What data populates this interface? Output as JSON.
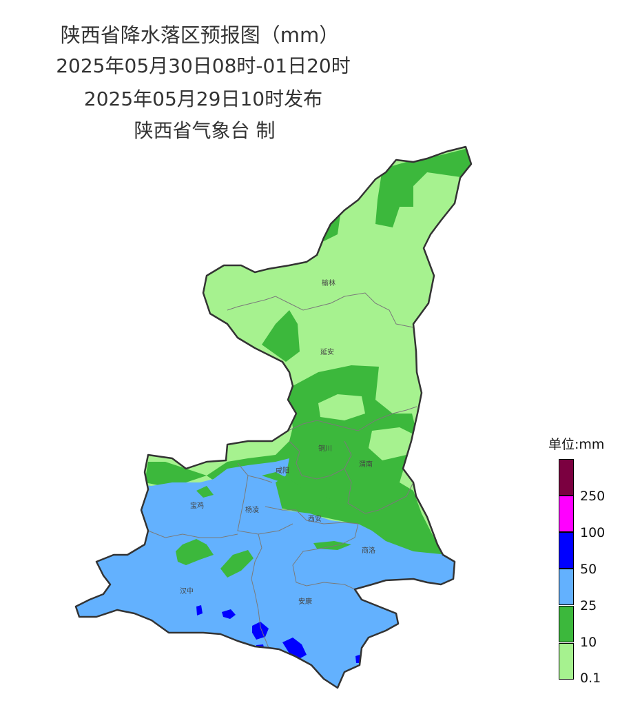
{
  "header": {
    "title": "陕西省降水落区预报图（mm）",
    "period": "2025年05月30日08时-01日20时",
    "issued": "2025年05月29日10时发布",
    "producer": "陕西省气象台 制"
  },
  "cities": [
    {
      "name": "榆林"
    },
    {
      "name": "延安"
    },
    {
      "name": "铜川"
    },
    {
      "name": "咸阳"
    },
    {
      "name": "渭南"
    },
    {
      "name": "宝鸡"
    },
    {
      "name": "杨凌"
    },
    {
      "name": "西安"
    },
    {
      "name": "商洛"
    },
    {
      "name": "汉中"
    },
    {
      "name": "安康"
    }
  ],
  "legend": {
    "title": "单位:mm",
    "classes": [
      {
        "color": "#7b0040"
      },
      {
        "color": "#ff00ff"
      },
      {
        "color": "#0000ff"
      },
      {
        "color": "#63b1fe"
      },
      {
        "color": "#3cb83c"
      },
      {
        "color": "#a6f28f"
      }
    ],
    "ticks": [
      "250",
      "100",
      "50",
      "25",
      "10",
      "0.1"
    ]
  }
}
